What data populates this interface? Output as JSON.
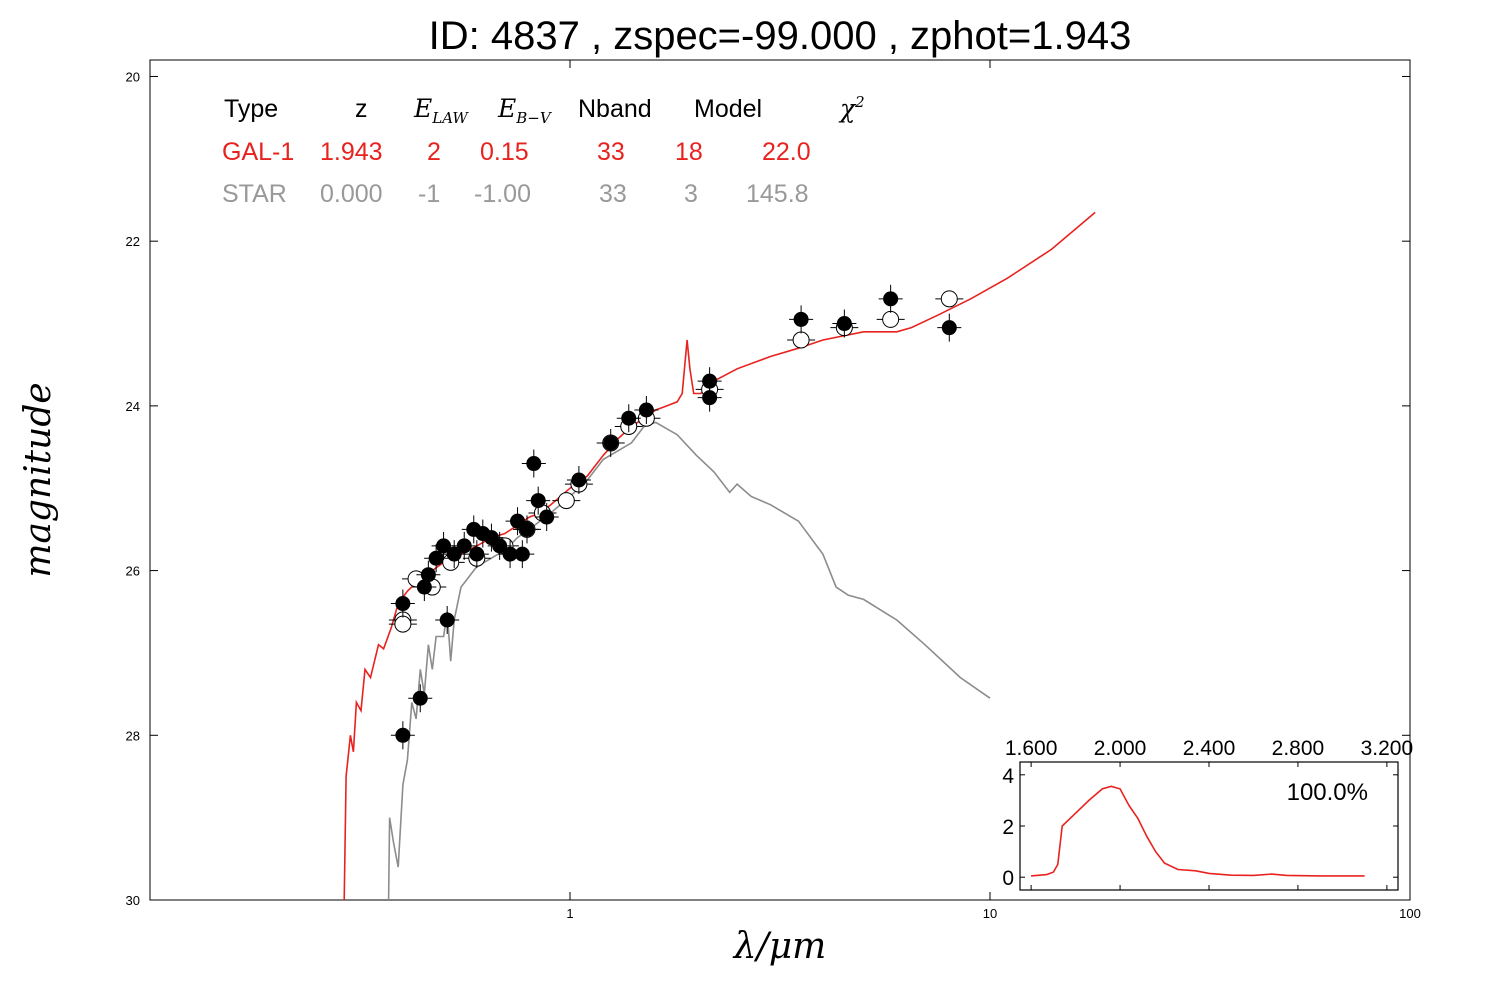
{
  "chart_data": {
    "type": "scatter",
    "title": "ID:  4837  , zspec=-99.000 , zphot=1.943",
    "xlabel": "λ/μm",
    "ylabel": "magnitude",
    "xscale": "log",
    "xlim": [
      0.1,
      100
    ],
    "ylim": [
      30,
      19.8
    ],
    "y_inverted": true,
    "x_tick_labels": [
      "1",
      "10",
      "100"
    ],
    "y_tick_labels": [
      "20",
      "22",
      "24",
      "26",
      "28",
      "30"
    ],
    "fit_table": {
      "headers": [
        "Type",
        "z",
        "E_LAW",
        "E_B-V",
        "Nband",
        "Model",
        "χ²"
      ],
      "rows": [
        {
          "values": [
            "GAL-1",
            "1.943",
            "2",
            "0.15",
            "33",
            "18",
            "22.0"
          ],
          "color": "#e8231f"
        },
        {
          "values": [
            "STAR",
            "0.000",
            "-1",
            "-1.00",
            "33",
            "3",
            "145.8"
          ],
          "color": "#999999"
        }
      ]
    },
    "series": [
      {
        "name": "GAL-1",
        "kind": "line",
        "color": "#e8231f",
        "points": [
          [
            0.29,
            30
          ],
          [
            0.293,
            28.5
          ],
          [
            0.3,
            28.0
          ],
          [
            0.305,
            28.2
          ],
          [
            0.31,
            27.6
          ],
          [
            0.318,
            27.7
          ],
          [
            0.325,
            27.2
          ],
          [
            0.335,
            27.3
          ],
          [
            0.35,
            26.9
          ],
          [
            0.36,
            26.95
          ],
          [
            0.375,
            26.7
          ],
          [
            0.39,
            26.4
          ],
          [
            0.41,
            26.25
          ],
          [
            0.44,
            26.1
          ],
          [
            0.47,
            26.0
          ],
          [
            0.5,
            25.9
          ],
          [
            0.55,
            25.8
          ],
          [
            0.6,
            25.7
          ],
          [
            0.65,
            25.6
          ],
          [
            0.7,
            25.55
          ],
          [
            0.75,
            25.45
          ],
          [
            0.8,
            25.35
          ],
          [
            0.85,
            25.3
          ],
          [
            0.9,
            25.2
          ],
          [
            1.0,
            25.0
          ],
          [
            1.1,
            24.85
          ],
          [
            1.2,
            24.6
          ],
          [
            1.3,
            24.4
          ],
          [
            1.4,
            24.25
          ],
          [
            1.5,
            24.15
          ],
          [
            1.6,
            24.05
          ],
          [
            1.7,
            24.0
          ],
          [
            1.8,
            23.95
          ],
          [
            1.85,
            23.85
          ],
          [
            1.9,
            23.2
          ],
          [
            1.93,
            23.55
          ],
          [
            1.97,
            23.85
          ],
          [
            2.05,
            23.85
          ],
          [
            2.2,
            23.7
          ],
          [
            2.5,
            23.55
          ],
          [
            3.0,
            23.4
          ],
          [
            3.5,
            23.3
          ],
          [
            4.0,
            23.2
          ],
          [
            5.0,
            23.1
          ],
          [
            6.0,
            23.1
          ],
          [
            6.5,
            23.05
          ],
          [
            7.5,
            22.9
          ],
          [
            9.0,
            22.7
          ],
          [
            11.0,
            22.45
          ],
          [
            14.0,
            22.1
          ],
          [
            17.8,
            21.65
          ]
        ]
      },
      {
        "name": "STAR",
        "kind": "line",
        "color": "#8c8c8c",
        "points": [
          [
            0.37,
            30
          ],
          [
            0.372,
            29.0
          ],
          [
            0.38,
            29.3
          ],
          [
            0.39,
            29.6
          ],
          [
            0.4,
            28.6
          ],
          [
            0.41,
            28.3
          ],
          [
            0.42,
            27.6
          ],
          [
            0.43,
            27.8
          ],
          [
            0.44,
            27.2
          ],
          [
            0.45,
            27.5
          ],
          [
            0.46,
            26.9
          ],
          [
            0.47,
            27.2
          ],
          [
            0.48,
            26.8
          ],
          [
            0.5,
            26.8
          ],
          [
            0.51,
            26.5
          ],
          [
            0.52,
            27.1
          ],
          [
            0.53,
            26.6
          ],
          [
            0.55,
            26.2
          ],
          [
            0.57,
            26.1
          ],
          [
            0.6,
            25.95
          ],
          [
            0.65,
            25.85
          ],
          [
            0.7,
            25.75
          ],
          [
            0.75,
            25.6
          ],
          [
            0.8,
            25.5
          ],
          [
            0.9,
            25.3
          ],
          [
            1.0,
            25.1
          ],
          [
            1.1,
            24.9
          ],
          [
            1.2,
            24.65
          ],
          [
            1.4,
            24.45
          ],
          [
            1.5,
            24.25
          ],
          [
            1.6,
            24.2
          ],
          [
            1.8,
            24.35
          ],
          [
            2.0,
            24.6
          ],
          [
            2.2,
            24.8
          ],
          [
            2.4,
            25.05
          ],
          [
            2.5,
            24.95
          ],
          [
            2.7,
            25.1
          ],
          [
            3.0,
            25.2
          ],
          [
            3.5,
            25.4
          ],
          [
            4.0,
            25.8
          ],
          [
            4.3,
            26.2
          ],
          [
            4.6,
            26.3
          ],
          [
            5.0,
            26.35
          ],
          [
            6.0,
            26.6
          ],
          [
            7.0,
            26.9
          ],
          [
            8.5,
            27.3
          ],
          [
            10.0,
            27.55
          ]
        ]
      },
      {
        "name": "observed",
        "kind": "points",
        "marker": "filled",
        "points": [
          [
            0.4,
            26.4
          ],
          [
            0.4,
            28.0
          ],
          [
            0.44,
            27.55
          ],
          [
            0.45,
            26.2
          ],
          [
            0.46,
            26.05
          ],
          [
            0.48,
            25.85
          ],
          [
            0.5,
            25.7
          ],
          [
            0.51,
            26.6
          ],
          [
            0.53,
            25.8
          ],
          [
            0.56,
            25.7
          ],
          [
            0.59,
            25.5
          ],
          [
            0.6,
            25.8
          ],
          [
            0.62,
            25.55
          ],
          [
            0.65,
            25.6
          ],
          [
            0.68,
            25.7
          ],
          [
            0.72,
            25.8
          ],
          [
            0.75,
            25.4
          ],
          [
            0.77,
            25.8
          ],
          [
            0.79,
            25.5
          ],
          [
            0.82,
            24.7
          ],
          [
            0.84,
            25.15
          ],
          [
            0.88,
            25.35
          ],
          [
            1.05,
            24.9
          ],
          [
            1.25,
            24.45
          ],
          [
            1.38,
            24.15
          ],
          [
            1.52,
            24.05
          ],
          [
            2.15,
            23.7
          ],
          [
            2.15,
            23.9
          ],
          [
            3.55,
            22.95
          ],
          [
            4.5,
            23.0
          ],
          [
            5.8,
            22.7
          ],
          [
            8.0,
            23.05
          ]
        ]
      },
      {
        "name": "model",
        "kind": "points",
        "marker": "open",
        "points": [
          [
            0.4,
            26.6
          ],
          [
            0.4,
            26.65
          ],
          [
            0.43,
            26.1
          ],
          [
            0.47,
            26.2
          ],
          [
            0.52,
            25.9
          ],
          [
            0.6,
            25.85
          ],
          [
            0.7,
            25.7
          ],
          [
            0.79,
            25.5
          ],
          [
            0.86,
            25.3
          ],
          [
            0.98,
            25.15
          ],
          [
            1.05,
            24.95
          ],
          [
            1.25,
            24.45
          ],
          [
            1.38,
            24.25
          ],
          [
            1.52,
            24.15
          ],
          [
            2.15,
            23.8
          ],
          [
            3.55,
            23.2
          ],
          [
            4.5,
            23.05
          ],
          [
            5.8,
            22.95
          ],
          [
            8.0,
            22.7
          ]
        ]
      }
    ],
    "inset": {
      "type": "line",
      "x_tick_labels": [
        "1.600",
        "2.000",
        "2.400",
        "2.800",
        "3.200"
      ],
      "y_tick_labels": [
        "0",
        "2",
        "4"
      ],
      "xlim": [
        1.55,
        3.25
      ],
      "ylim": [
        -0.5,
        4.5
      ],
      "annotation": "100.0%",
      "color": "#e8231f",
      "points": [
        [
          1.6,
          0.05
        ],
        [
          1.67,
          0.1
        ],
        [
          1.7,
          0.2
        ],
        [
          1.72,
          0.5
        ],
        [
          1.74,
          2.0
        ],
        [
          1.8,
          2.5
        ],
        [
          1.86,
          3.0
        ],
        [
          1.92,
          3.45
        ],
        [
          1.96,
          3.55
        ],
        [
          2.0,
          3.45
        ],
        [
          2.04,
          2.8
        ],
        [
          2.08,
          2.3
        ],
        [
          2.12,
          1.6
        ],
        [
          2.16,
          1.0
        ],
        [
          2.2,
          0.55
        ],
        [
          2.26,
          0.3
        ],
        [
          2.34,
          0.25
        ],
        [
          2.4,
          0.15
        ],
        [
          2.5,
          0.08
        ],
        [
          2.6,
          0.07
        ],
        [
          2.68,
          0.12
        ],
        [
          2.75,
          0.07
        ],
        [
          2.9,
          0.05
        ],
        [
          3.1,
          0.05
        ]
      ]
    }
  }
}
